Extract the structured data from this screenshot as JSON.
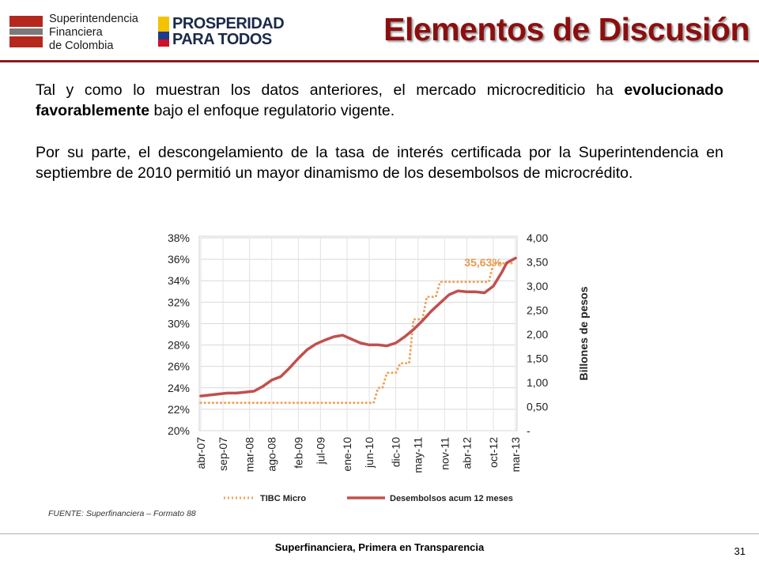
{
  "header": {
    "logo_lines": [
      "Superintendencia",
      "Financiera",
      "de Colombia"
    ],
    "logo2_lines": [
      "PROSPERIDAD",
      "PARA TODOS"
    ],
    "title": "Elementos de Discusión"
  },
  "body": {
    "p1_pre": "Tal y como lo muestran los datos anteriores, el mercado microcrediticio ha ",
    "p1_bold": "evolucionado favorablemente",
    "p1_post": " bajo el enfoque regulatorio vigente.",
    "p2": "Por su parte, el descongelamiento de la tasa de interés certificada por la Superintendencia en septiembre de 2010 permitió un mayor dinamismo de los desembolsos de microcrédito."
  },
  "chart_data": {
    "type": "line",
    "title": "",
    "xlabel": "",
    "ylabel_left": "",
    "ylabel_right": "Billones de pesos",
    "y_left_range": [
      0.2,
      0.38
    ],
    "y_left_ticks": [
      "20%",
      "22%",
      "24%",
      "26%",
      "28%",
      "30%",
      "32%",
      "34%",
      "36%",
      "38%"
    ],
    "y_right_range": [
      0,
      4
    ],
    "y_right_ticks": [
      "-",
      "0,50",
      "1,00",
      "1,50",
      "2,00",
      "2,50",
      "3,00",
      "3,50",
      "4,00"
    ],
    "x_tick_labels": [
      "abr-07",
      "sep-07",
      "mar-08",
      "ago-08",
      "feb-09",
      "jul-09",
      "ene-10",
      "jun-10",
      "dic-10",
      "may-11",
      "nov-11",
      "abr-12",
      "oct-12",
      "mar-13"
    ],
    "x_tick_months": [
      "2007-04",
      "2007-09",
      "2008-03",
      "2008-08",
      "2009-02",
      "2009-07",
      "2010-01",
      "2010-06",
      "2010-12",
      "2011-05",
      "2011-11",
      "2012-04",
      "2012-10",
      "2013-03"
    ],
    "grid": true,
    "legend_position": "bottom",
    "annotation": {
      "text": "35,63%",
      "at_month": "2013-01",
      "series": "TIBC Micro"
    },
    "series": [
      {
        "name": "TIBC Micro",
        "axis": "left",
        "style": "dotted",
        "color": "#f0a25a",
        "points": [
          [
            "2007-04",
            0.226
          ],
          [
            "2010-06",
            0.226
          ],
          [
            "2010-07",
            0.226
          ],
          [
            "2010-08",
            0.24
          ],
          [
            "2010-09",
            0.24
          ],
          [
            "2010-10",
            0.254
          ],
          [
            "2010-11",
            0.254
          ],
          [
            "2010-12",
            0.254
          ],
          [
            "2011-01",
            0.263
          ],
          [
            "2011-02",
            0.263
          ],
          [
            "2011-03",
            0.263
          ],
          [
            "2011-04",
            0.304
          ],
          [
            "2011-05",
            0.304
          ],
          [
            "2011-06",
            0.304
          ],
          [
            "2011-07",
            0.325
          ],
          [
            "2011-08",
            0.325
          ],
          [
            "2011-09",
            0.325
          ],
          [
            "2011-10",
            0.339
          ],
          [
            "2011-11",
            0.339
          ],
          [
            "2011-12",
            0.339
          ],
          [
            "2012-01",
            0.339
          ],
          [
            "2012-02",
            0.339
          ],
          [
            "2012-03",
            0.339
          ],
          [
            "2012-04",
            0.339
          ],
          [
            "2012-05",
            0.339
          ],
          [
            "2012-06",
            0.339
          ],
          [
            "2012-07",
            0.339
          ],
          [
            "2012-08",
            0.339
          ],
          [
            "2012-09",
            0.339
          ],
          [
            "2012-10",
            0.3563
          ],
          [
            "2012-11",
            0.3563
          ],
          [
            "2012-12",
            0.3563
          ],
          [
            "2013-01",
            0.3563
          ],
          [
            "2013-02",
            0.3563
          ],
          [
            "2013-03",
            0.3563
          ]
        ]
      },
      {
        "name": "Desembolsos acum 12 meses",
        "axis": "right",
        "style": "solid",
        "color": "#c0504d",
        "points": [
          [
            "2007-04",
            0.72
          ],
          [
            "2007-06",
            0.74
          ],
          [
            "2007-08",
            0.76
          ],
          [
            "2007-10",
            0.78
          ],
          [
            "2007-12",
            0.78
          ],
          [
            "2008-02",
            0.8
          ],
          [
            "2008-04",
            0.82
          ],
          [
            "2008-06",
            0.92
          ],
          [
            "2008-08",
            1.05
          ],
          [
            "2008-10",
            1.12
          ],
          [
            "2008-12",
            1.3
          ],
          [
            "2009-02",
            1.5
          ],
          [
            "2009-04",
            1.68
          ],
          [
            "2009-06",
            1.8
          ],
          [
            "2009-08",
            1.88
          ],
          [
            "2009-10",
            1.95
          ],
          [
            "2009-12",
            1.98
          ],
          [
            "2010-02",
            1.9
          ],
          [
            "2010-04",
            1.82
          ],
          [
            "2010-06",
            1.78
          ],
          [
            "2010-08",
            1.78
          ],
          [
            "2010-10",
            1.76
          ],
          [
            "2010-12",
            1.82
          ],
          [
            "2011-02",
            1.95
          ],
          [
            "2011-04",
            2.1
          ],
          [
            "2011-06",
            2.28
          ],
          [
            "2011-08",
            2.48
          ],
          [
            "2011-10",
            2.65
          ],
          [
            "2011-12",
            2.82
          ],
          [
            "2012-02",
            2.9
          ],
          [
            "2012-04",
            2.88
          ],
          [
            "2012-06",
            2.88
          ],
          [
            "2012-08",
            2.86
          ],
          [
            "2012-10",
            3.0
          ],
          [
            "2012-12",
            3.3
          ],
          [
            "2013-01",
            3.48
          ],
          [
            "2013-03",
            3.58
          ]
        ]
      }
    ]
  },
  "source": "FUENTE: Superfinanciera – Formato 88",
  "footer": "Superfinanciera, Primera en Transparencia",
  "page_number": "31"
}
